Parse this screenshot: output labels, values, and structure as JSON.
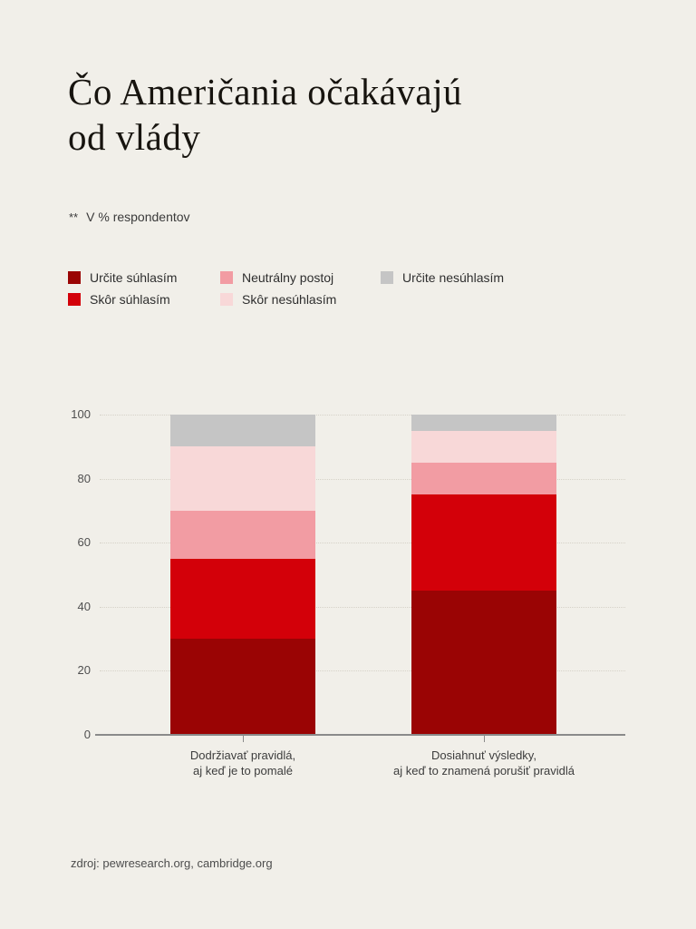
{
  "page": {
    "title": "Čo Američania očakávajú\nod vlády",
    "note_marker": "**",
    "note_text": "V % respondentov",
    "source": "zdroj: pewresearch.org, cambridge.org",
    "background_color": "#F1EFE9"
  },
  "legend": {
    "items": [
      {
        "label": "Určite súhlasím",
        "color": "#9A0404"
      },
      {
        "label": "Skôr súhlasím",
        "color": "#D30009"
      },
      {
        "label": "Neutrálny postoj",
        "color": "#F29CA3"
      },
      {
        "label": "Skôr nesúhlasím",
        "color": "#F8D8D8"
      },
      {
        "label": "Určite nesúhlasím",
        "color": "#C5C5C5"
      }
    ]
  },
  "chart_data": {
    "type": "bar",
    "stacked": true,
    "title": "Čo Američania očakávajú od vlády",
    "ylabel": "% respondentov",
    "xlabel": "",
    "categories": [
      "Dodržiavať pravidlá,\naj keď je to pomalé",
      "Dosiahnuť výsledky,\naj keď to znamená porušiť pravidlá"
    ],
    "series": [
      {
        "name": "Určite súhlasím",
        "color": "#9A0404",
        "values": [
          30,
          45
        ]
      },
      {
        "name": "Skôr súhlasím",
        "color": "#D30009",
        "values": [
          25,
          30
        ]
      },
      {
        "name": "Neutrálny postoj",
        "color": "#F29CA3",
        "values": [
          15,
          10
        ]
      },
      {
        "name": "Skôr nesúhlasím",
        "color": "#F8D8D8",
        "values": [
          20,
          10
        ]
      },
      {
        "name": "Určite nesúhlasím",
        "color": "#C5C5C5",
        "values": [
          10,
          5
        ]
      }
    ],
    "yticks": [
      0,
      20,
      40,
      60,
      80,
      100
    ],
    "ylim": [
      0,
      100
    ],
    "grid": "horizontal-dotted",
    "legend_position": "top-left"
  }
}
